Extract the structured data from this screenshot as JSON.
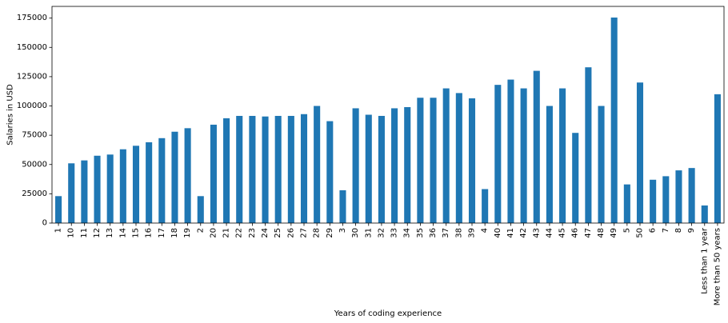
{
  "chart_data": {
    "type": "bar",
    "xlabel": "Years of coding experience",
    "ylabel": "Salaries in USD",
    "ylim": [
      0,
      185000
    ],
    "yticks": [
      0,
      25000,
      50000,
      75000,
      100000,
      125000,
      150000,
      175000
    ],
    "ytick_labels": [
      "0",
      "25000",
      "50000",
      "75000",
      "100000",
      "125000",
      "150000",
      "175000"
    ],
    "bar_color": "#1f77b4",
    "grid": false,
    "categories": [
      "1",
      "10",
      "11",
      "12",
      "13",
      "14",
      "15",
      "16",
      "17",
      "18",
      "19",
      "2",
      "20",
      "21",
      "22",
      "23",
      "24",
      "25",
      "26",
      "27",
      "28",
      "29",
      "3",
      "30",
      "31",
      "32",
      "33",
      "34",
      "35",
      "36",
      "37",
      "38",
      "39",
      "4",
      "40",
      "41",
      "42",
      "43",
      "44",
      "45",
      "46",
      "47",
      "48",
      "49",
      "5",
      "50",
      "6",
      "7",
      "8",
      "9",
      "Less than 1 year",
      "More than 50 years"
    ],
    "values": [
      23000,
      51000,
      53500,
      57500,
      58500,
      63000,
      66000,
      69000,
      72500,
      78000,
      81000,
      23000,
      84000,
      89500,
      91500,
      91500,
      91000,
      91500,
      91500,
      93000,
      100000,
      87000,
      28000,
      98000,
      92500,
      91500,
      98000,
      99000,
      107000,
      107000,
      115000,
      111000,
      106500,
      29000,
      118000,
      122500,
      115000,
      130000,
      100000,
      115000,
      77000,
      133000,
      100000,
      175500,
      33000,
      120000,
      37000,
      40000,
      45000,
      47000,
      15000,
      110000
    ]
  }
}
